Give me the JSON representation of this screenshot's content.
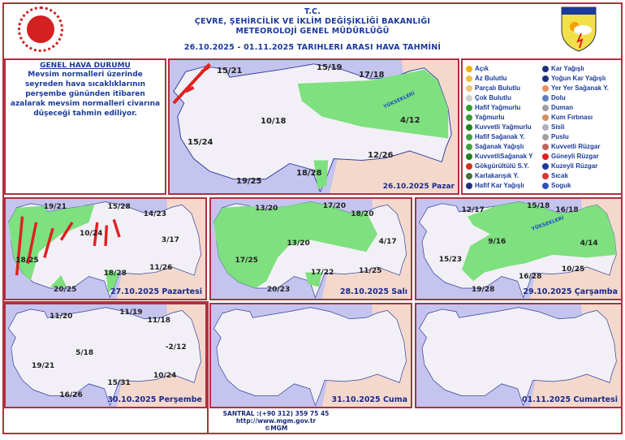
{
  "header": {
    "line1": "T.C.",
    "line2": "ÇEVRE, ŞEHİRCİLİK VE İKLİM DEĞİŞİKLİĞİ BAKANLIĞI",
    "line3": "METEOROLOJİ  GENEL  MÜDÜRLÜĞÜ",
    "period": "26.10.2025  -  01.11.2025   TARIHLERI  ARASI  HAVA  TAHMİNİ",
    "logo_right_text": "METEOROLOJİ"
  },
  "general": {
    "title": "GENEL HAVA DURUMU",
    "text": "Mevsim normalleri üzerinde seyreden hava sıcaklıklarının perşembe gününden itibaren azalarak mevsim normalleri civarına düşeceği tahmin ediliyor."
  },
  "legend": {
    "left": [
      {
        "label": "Açık",
        "icon": "sun-icon",
        "color": "#f6b000"
      },
      {
        "label": "Az Bulutlu",
        "icon": "sun-small-cloud-icon",
        "color": "#f0c040"
      },
      {
        "label": "Parçalı Bulutlu",
        "icon": "partly-cloudy-icon",
        "color": "#e8c878"
      },
      {
        "label": "Çok Bulutlu",
        "icon": "cloud-icon",
        "color": "#cfcfcf"
      },
      {
        "label": "Hafif Yağmurlu",
        "icon": "light-rain-icon",
        "color": "#30a030"
      },
      {
        "label": "Yağmurlu",
        "icon": "rain-icon",
        "color": "#30a030"
      },
      {
        "label": "Kuvvetli Yağmurlu",
        "icon": "heavy-rain-icon",
        "color": "#208020"
      },
      {
        "label": "Hafif Sağanak Y.",
        "icon": "light-shower-icon",
        "color": "#40a040"
      },
      {
        "label": "Sağanak Yağışlı",
        "icon": "shower-icon",
        "color": "#40a040"
      },
      {
        "label": "KuvvetliSağanak Y",
        "icon": "heavy-shower-icon",
        "color": "#208020"
      },
      {
        "label": "Gökgürültülü S.Y.",
        "icon": "thunderstorm-icon",
        "color": "#d03020"
      },
      {
        "label": "Karlakarışık Y.",
        "icon": "sleet-icon",
        "color": "#407040"
      },
      {
        "label": "Hafif Kar Yağışlı",
        "icon": "light-snow-icon",
        "color": "#203080"
      }
    ],
    "right": [
      {
        "label": "Kar Yağışlı",
        "icon": "snow-icon",
        "color": "#203080"
      },
      {
        "label": "Yoğun Kar Yağışlı",
        "icon": "heavy-snow-icon",
        "color": "#203080"
      },
      {
        "label": "Yer Yer Sağanak Y.",
        "icon": "scattered-shower-icon",
        "color": "#e89060"
      },
      {
        "label": "Dolu",
        "icon": "hail-icon",
        "color": "#6080c0"
      },
      {
        "label": "Duman",
        "icon": "smoke-icon",
        "color": "#a0a0a0"
      },
      {
        "label": "Kum Fırtınası",
        "icon": "sandstorm-icon",
        "color": "#d09060"
      },
      {
        "label": "Sisli",
        "icon": "fog-icon",
        "color": "#b0b0c0"
      },
      {
        "label": "Puslu",
        "icon": "haze-icon",
        "color": "#a0a0a0"
      },
      {
        "label": "Kuvvetli Rüzgar",
        "icon": "strong-wind-icon",
        "color": "#c06060"
      },
      {
        "label": "Güneyli Rüzgar",
        "icon": "south-wind-arrow-icon",
        "color": "#e02020"
      },
      {
        "label": "Kuzeyli Rüzgar",
        "icon": "north-wind-arrow-icon",
        "color": "#1a3a9a"
      },
      {
        "label": "Sıcak",
        "icon": "hot-thermometer-icon",
        "color": "#e03030"
      },
      {
        "label": "Soguk",
        "icon": "cold-thermometer-icon",
        "color": "#3050c0"
      }
    ]
  },
  "maps": [
    {
      "date": "26.10.2025 Pazar",
      "temps": [
        "15/21",
        "15/19",
        "17/18",
        "10/18",
        "4/12",
        "15/24",
        "12/26",
        "18/28",
        "19/25"
      ],
      "label": "YÜKSEKLERİ"
    },
    {
      "date": "27.10.2025 Pazartesi",
      "temps": [
        "19/21",
        "15/28",
        "14/23",
        "10/24",
        "3/17",
        "18/25",
        "11/26",
        "18/28",
        "20/25"
      ]
    },
    {
      "date": "28.10.2025 Salı",
      "temps": [
        "13/20",
        "17/20",
        "18/20",
        "13/20",
        "4/17",
        "17/25",
        "11/25",
        "17/22",
        "20/23"
      ]
    },
    {
      "date": "29.10.2025 Çarşamba",
      "temps": [
        "12/17",
        "15/18",
        "16/18",
        "9/16",
        "4/14",
        "15/23",
        "10/25",
        "16/28",
        "19/28"
      ],
      "label": "YÜKSEKLERİ"
    },
    {
      "date": "30.10.2025 Perşembe",
      "temps": [
        "11/20",
        "11/19",
        "11/18",
        "5/18",
        "-2/12",
        "19/21",
        "10/24",
        "15/31",
        "16/26"
      ]
    },
    {
      "date": "31.10.2025 Cuma",
      "temps": []
    },
    {
      "date": "01.11.2025 Cumartesi",
      "temps": []
    }
  ],
  "footer": {
    "phone": "SANTRAL :(+90 312) 359 75 45",
    "url": "http://www.mgm.gov.tr",
    "copyright": "©MGM"
  },
  "colors": {
    "sea": "#c4c4ee",
    "land": "#f2f0f6",
    "rain": "#7ee07e",
    "neighbor": "#f4d8cc",
    "border": "#b03040",
    "text": "#1a3a9a"
  }
}
